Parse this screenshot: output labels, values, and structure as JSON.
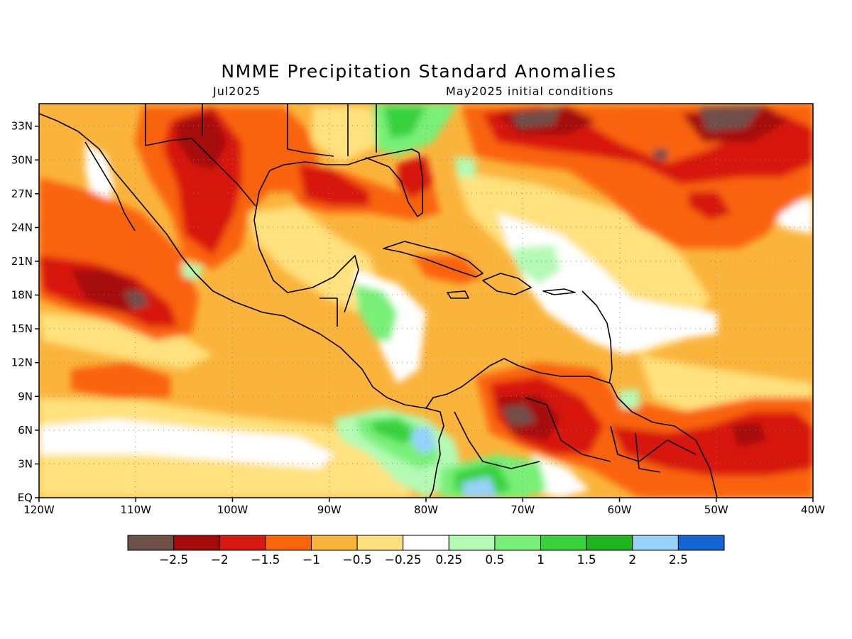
{
  "header": {
    "title": "NMME Precipitation Standard Anomalies",
    "target_month": "Jul2025",
    "initial_conditions": "May2025 initial conditions"
  },
  "map": {
    "lon_range": [
      -120,
      -40
    ],
    "lat_range": [
      0,
      35
    ],
    "x_ticks": [
      {
        "lon": -120,
        "label": "120W"
      },
      {
        "lon": -110,
        "label": "110W"
      },
      {
        "lon": -100,
        "label": "100W"
      },
      {
        "lon": -90,
        "label": "90W"
      },
      {
        "lon": -80,
        "label": "80W"
      },
      {
        "lon": -70,
        "label": "70W"
      },
      {
        "lon": -60,
        "label": "60W"
      },
      {
        "lon": -50,
        "label": "50W"
      },
      {
        "lon": -40,
        "label": "40W"
      }
    ],
    "y_ticks": [
      {
        "lat": 33,
        "label": "33N"
      },
      {
        "lat": 30,
        "label": "30N"
      },
      {
        "lat": 27,
        "label": "27N"
      },
      {
        "lat": 24,
        "label": "24N"
      },
      {
        "lat": 21,
        "label": "21N"
      },
      {
        "lat": 18,
        "label": "18N"
      },
      {
        "lat": 15,
        "label": "15N"
      },
      {
        "lat": 12,
        "label": "12N"
      },
      {
        "lat": 9,
        "label": "9N"
      },
      {
        "lat": 6,
        "label": "6N"
      },
      {
        "lat": 3,
        "label": "3N"
      },
      {
        "lat": 0,
        "label": "EQ"
      }
    ]
  },
  "colorbar": {
    "colors": [
      "#6e5048",
      "#a50a0a",
      "#d7190f",
      "#fa640a",
      "#fab43c",
      "#ffe17d",
      "#ffffff",
      "#b4fab4",
      "#78f078",
      "#37d23c",
      "#1eb41e",
      "#96d2fa",
      "#1464d2"
    ],
    "labels": [
      "−2.5",
      "−2",
      "−1.5",
      "−1",
      "−0.5",
      "−0.25",
      "0.25",
      "0.5",
      "1",
      "1.5",
      "2",
      "2.5"
    ]
  }
}
